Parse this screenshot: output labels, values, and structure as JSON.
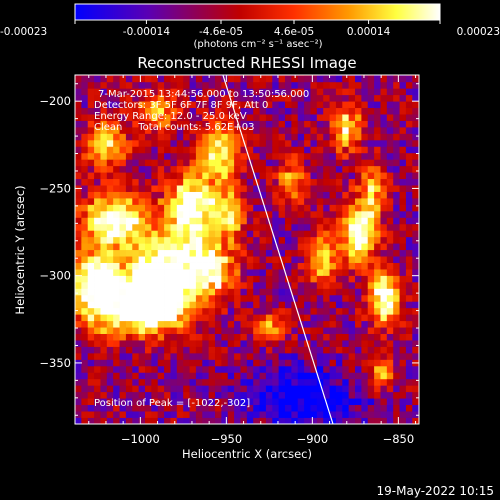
{
  "footer": {
    "timestamp": "19-May-2022 10:15"
  },
  "colorbar": {
    "colormap": "blue-purple-red-yellow-white",
    "stops": [
      "#0000ff",
      "#5a00b4",
      "#c00000",
      "#ff3000",
      "#ff9900",
      "#ffff40",
      "#ffffff"
    ],
    "range": [
      -0.00023,
      0.00023
    ],
    "tick_labels": [
      "-0.00023",
      "-0.00014",
      "-4.6e-05",
      "4.6e-05",
      "0.00014",
      "0.00023"
    ],
    "unit_label": "(photons cm⁻² s⁻¹ asec⁻²)"
  },
  "chart_data": {
    "type": "heatmap",
    "title": "Reconstructed RHESSI Image",
    "xlabel": "Heliocentric X (arcsec)",
    "ylabel": "Heliocentric Y (arcsec)",
    "xlim": [
      -1038,
      -838
    ],
    "ylim": [
      -385,
      -185
    ],
    "xticks": [
      -1000,
      -950,
      -900,
      -850
    ],
    "xtick_labels": [
      "−1000",
      "−950",
      "−900",
      "−850"
    ],
    "yticks": [
      -200,
      -250,
      -300,
      -350
    ],
    "ytick_labels": [
      "−200",
      "−250",
      "−300",
      "−350"
    ],
    "info_lines": [
      "7-Mar-2015 13:44:56.000 to 13:50:56.000",
      "Detectors: 3F 5F 6F 7F 8F 9F, Att 0",
      "Energy Range: 12.0 - 25.0 keV",
      "Clean     Total counts: 5.62E+03"
    ],
    "peak_label": "Position of Peak = [-1022,-302]",
    "peak_position": [
      -1022,
      -302
    ],
    "limb_line": {
      "x": [
        -952,
        -888
      ],
      "y": [
        -185,
        -385
      ]
    },
    "sources": [
      {
        "x": -988,
        "y": -300,
        "intensity": 1.0,
        "sx": 14,
        "sy": 15
      },
      {
        "x": -1015,
        "y": -268,
        "intensity": 0.8,
        "sx": 13,
        "sy": 10
      },
      {
        "x": -1025,
        "y": -305,
        "intensity": 0.95,
        "sx": 10,
        "sy": 14
      },
      {
        "x": -1000,
        "y": -320,
        "intensity": 0.85,
        "sx": 16,
        "sy": 9
      },
      {
        "x": -970,
        "y": -262,
        "intensity": 0.85,
        "sx": 10,
        "sy": 14
      },
      {
        "x": -960,
        "y": -297,
        "intensity": 0.75,
        "sx": 10,
        "sy": 10
      },
      {
        "x": -955,
        "y": -230,
        "intensity": 0.6,
        "sx": 8,
        "sy": 12
      },
      {
        "x": -1020,
        "y": -225,
        "intensity": 0.55,
        "sx": 9,
        "sy": 9
      },
      {
        "x": -990,
        "y": -205,
        "intensity": 0.5,
        "sx": 8,
        "sy": 7
      },
      {
        "x": -948,
        "y": -265,
        "intensity": 0.55,
        "sx": 6,
        "sy": 10
      },
      {
        "x": -873,
        "y": -275,
        "intensity": 0.8,
        "sx": 7,
        "sy": 12
      },
      {
        "x": -858,
        "y": -313,
        "intensity": 0.85,
        "sx": 6,
        "sy": 10
      },
      {
        "x": -895,
        "y": -290,
        "intensity": 0.55,
        "sx": 6,
        "sy": 10
      },
      {
        "x": -880,
        "y": -215,
        "intensity": 0.6,
        "sx": 6,
        "sy": 9
      },
      {
        "x": -865,
        "y": -250,
        "intensity": 0.5,
        "sx": 5,
        "sy": 10
      },
      {
        "x": -912,
        "y": -245,
        "intensity": 0.4,
        "sx": 6,
        "sy": 9
      },
      {
        "x": -925,
        "y": -330,
        "intensity": 0.45,
        "sx": 6,
        "sy": 6
      },
      {
        "x": -860,
        "y": -355,
        "intensity": 0.5,
        "sx": 5,
        "sy": 6
      }
    ],
    "background_level": 0.26,
    "negative_region": {
      "x": -905,
      "y": -370,
      "intensity": -0.35,
      "sx": 22,
      "sy": 12
    }
  }
}
